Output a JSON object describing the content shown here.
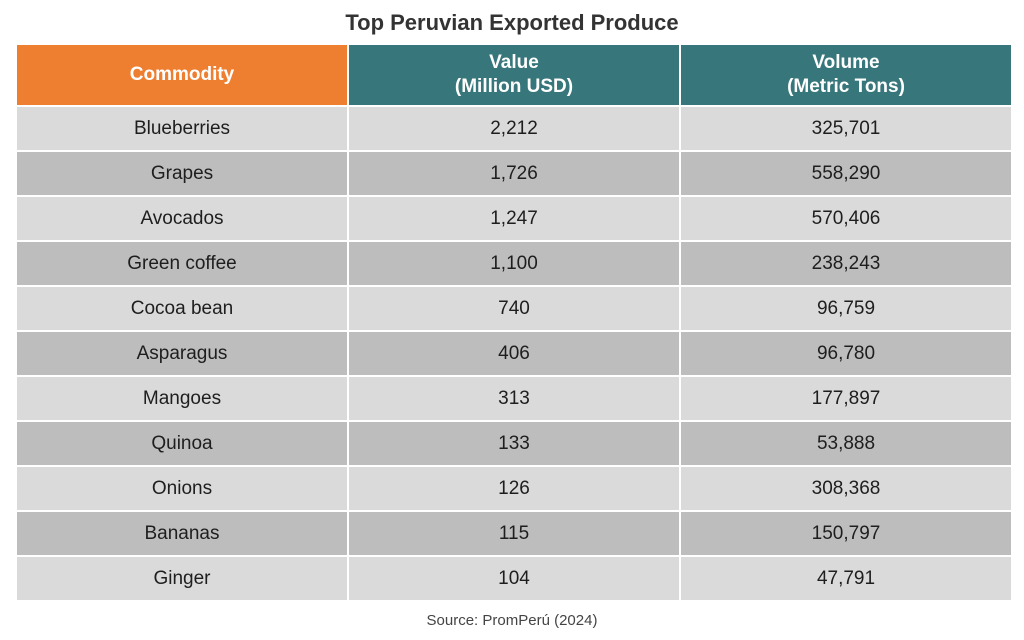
{
  "chart_data": {
    "type": "table",
    "title": "Top Peruvian Exported Produce",
    "columns": [
      {
        "line1": "Commodity",
        "line2": ""
      },
      {
        "line1": "Value",
        "line2": "(Million USD)"
      },
      {
        "line1": "Volume",
        "line2": "(Metric Tons)"
      }
    ],
    "rows": [
      [
        "Blueberries",
        "2,212",
        "325,701"
      ],
      [
        "Grapes",
        "1,726",
        "558,290"
      ],
      [
        "Avocados",
        "1,247",
        "570,406"
      ],
      [
        "Green coffee",
        "1,100",
        "238,243"
      ],
      [
        "Cocoa bean",
        "740",
        "96,759"
      ],
      [
        "Asparagus",
        "406",
        "96,780"
      ],
      [
        "Mangoes",
        "313",
        "177,897"
      ],
      [
        "Quinoa",
        "133",
        "53,888"
      ],
      [
        "Onions",
        "126",
        "308,368"
      ],
      [
        "Bananas",
        "115",
        "150,797"
      ],
      [
        "Ginger",
        "104",
        "47,791"
      ]
    ],
    "source": "Source: PromPerú (2024)"
  },
  "colors": {
    "header_commodity": "#ef7f30",
    "header_values": "#37767a",
    "row_light": "#dadada",
    "row_dark": "#bdbdbd"
  }
}
